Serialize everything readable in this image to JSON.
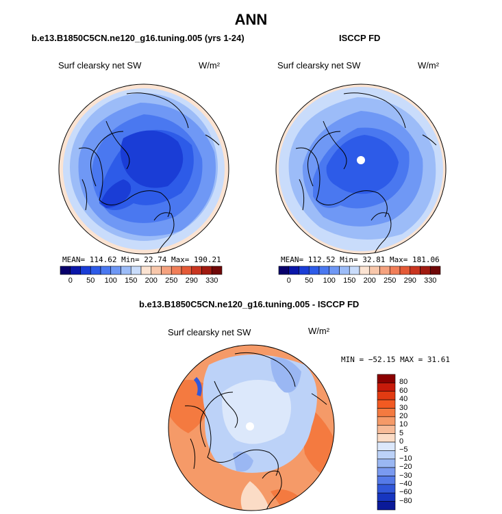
{
  "figure": {
    "title": "ANN"
  },
  "panels": [
    {
      "title": "b.e13.B1850C5CN.ne120_g16.tuning.005 (yrs 1-24)",
      "variable": "Surf clearsky net SW",
      "units": "W/m²",
      "stats": "MEAN= 114.62   Min=  22.74   Max= 190.21"
    },
    {
      "title": "ISCCP FD",
      "variable": "Surf clearsky net SW",
      "units": "W/m²",
      "stats": "MEAN= 112.52   Min=  32.81   Max= 181.06"
    },
    {
      "title": "b.e13.B1850C5CN.ne120_g16.tuning.005 - ISCCP FD",
      "variable": "Surf clearsky net SW",
      "units": "W/m²",
      "stats": "MIN = −52.15  MAX =  31.61"
    }
  ],
  "colorbar_abs": {
    "labels": [
      "0",
      "50",
      "100",
      "150",
      "200",
      "250",
      "290",
      "330"
    ],
    "colors": [
      "#08006b",
      "#0a16a8",
      "#1a3dd6",
      "#2d5be8",
      "#4a78f0",
      "#6f98f5",
      "#9cbcf8",
      "#c9dcfb",
      "#fbe3d2",
      "#f8c7ab",
      "#f5a27f",
      "#f17e58",
      "#e45a37",
      "#c93520",
      "#a01a10",
      "#700808"
    ]
  },
  "colorbar_diff": {
    "labels": [
      "80",
      "60",
      "40",
      "30",
      "20",
      "10",
      "5",
      "0",
      "−5",
      "−10",
      "−20",
      "−30",
      "−40",
      "−60",
      "−80"
    ],
    "colors": [
      "#8b0000",
      "#c71a0a",
      "#e23b12",
      "#f25a22",
      "#f47a40",
      "#f59a68",
      "#f7bb98",
      "#fbdcc6",
      "#dce8fb",
      "#bcd2f8",
      "#9ab7f3",
      "#7a9af0",
      "#557ae8",
      "#3157d9",
      "#1736c0",
      "#0a1a99"
    ]
  }
}
